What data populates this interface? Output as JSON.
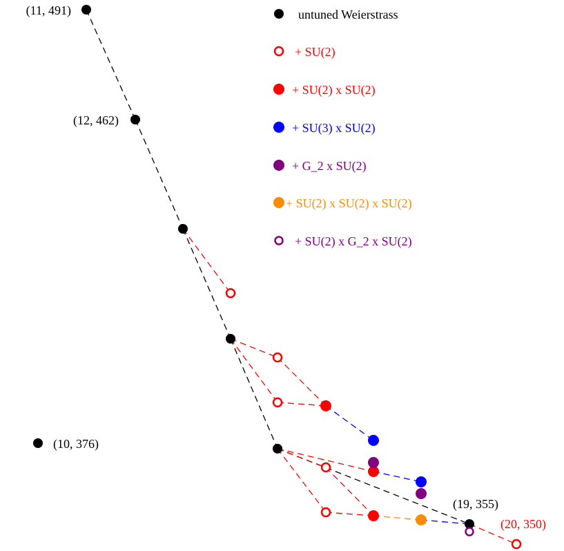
{
  "colors": {
    "black": "#000000",
    "red": "#ff0000",
    "blue": "#0000ff",
    "purple": "#800080",
    "orange": "#ff8c00"
  },
  "legend": [
    {
      "key": "untuned",
      "label": "untuned Weierstrass",
      "color": "#000000",
      "marker": "filled"
    },
    {
      "key": "su2_open",
      "label": "+ SU(2)",
      "color": "#ff0000",
      "marker": "open"
    },
    {
      "key": "su2xsu2",
      "label": "+ SU(2) x SU(2)",
      "color": "#ff0000",
      "marker": "filled"
    },
    {
      "key": "su3xsu2",
      "label": "+ SU(3) x SU(2)",
      "color": "#0000ff",
      "marker": "filled"
    },
    {
      "key": "g2xsu2",
      "label": "+ G_2 x SU(2)",
      "color": "#800080",
      "marker": "filled"
    },
    {
      "key": "su2x3",
      "label": "+ SU(2) x SU(2) x SU(2)",
      "color": "#ff8c00",
      "marker": "filled"
    },
    {
      "key": "su2g2su2",
      "label": "+ SU(2) x G_2 x SU(2)",
      "color": "#800080",
      "marker": "open"
    }
  ],
  "point_labels": {
    "p11": "(11, 491)",
    "p12": "(12, 462)",
    "p10": "(10, 376)",
    "p19": "(19, 355)",
    "p20": "(20, 350)"
  }
}
